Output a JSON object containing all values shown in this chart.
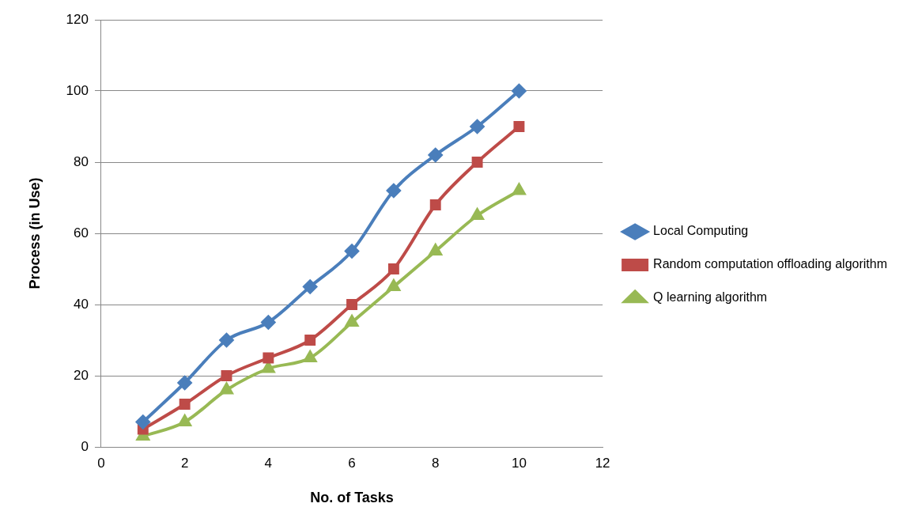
{
  "chart_data": {
    "type": "line",
    "xlabel": "No. of Tasks",
    "ylabel": "Process (in Use)",
    "x": [
      1,
      2,
      3,
      4,
      5,
      6,
      7,
      8,
      9,
      10
    ],
    "xlim": [
      0,
      12
    ],
    "xticks": [
      0,
      2,
      4,
      6,
      8,
      10,
      12
    ],
    "ylim": [
      0,
      120
    ],
    "yticks": [
      0,
      20,
      40,
      60,
      80,
      100,
      120
    ],
    "grid": "y",
    "legend": "right",
    "series": [
      {
        "name": "Local Computing",
        "color": "#4a7ebb",
        "marker": "diamond",
        "values": [
          7,
          18,
          30,
          35,
          45,
          55,
          72,
          82,
          90,
          100
        ]
      },
      {
        "name": "Random computation offloading algorithm",
        "color": "#be4b48",
        "marker": "square",
        "values": [
          5,
          12,
          20,
          25,
          30,
          40,
          50,
          68,
          80,
          90
        ]
      },
      {
        "name": "Q learning algorithm",
        "color": "#98b954",
        "marker": "triangle",
        "values": [
          3,
          7,
          16,
          22,
          25,
          35,
          45,
          55,
          65,
          72
        ]
      }
    ]
  }
}
